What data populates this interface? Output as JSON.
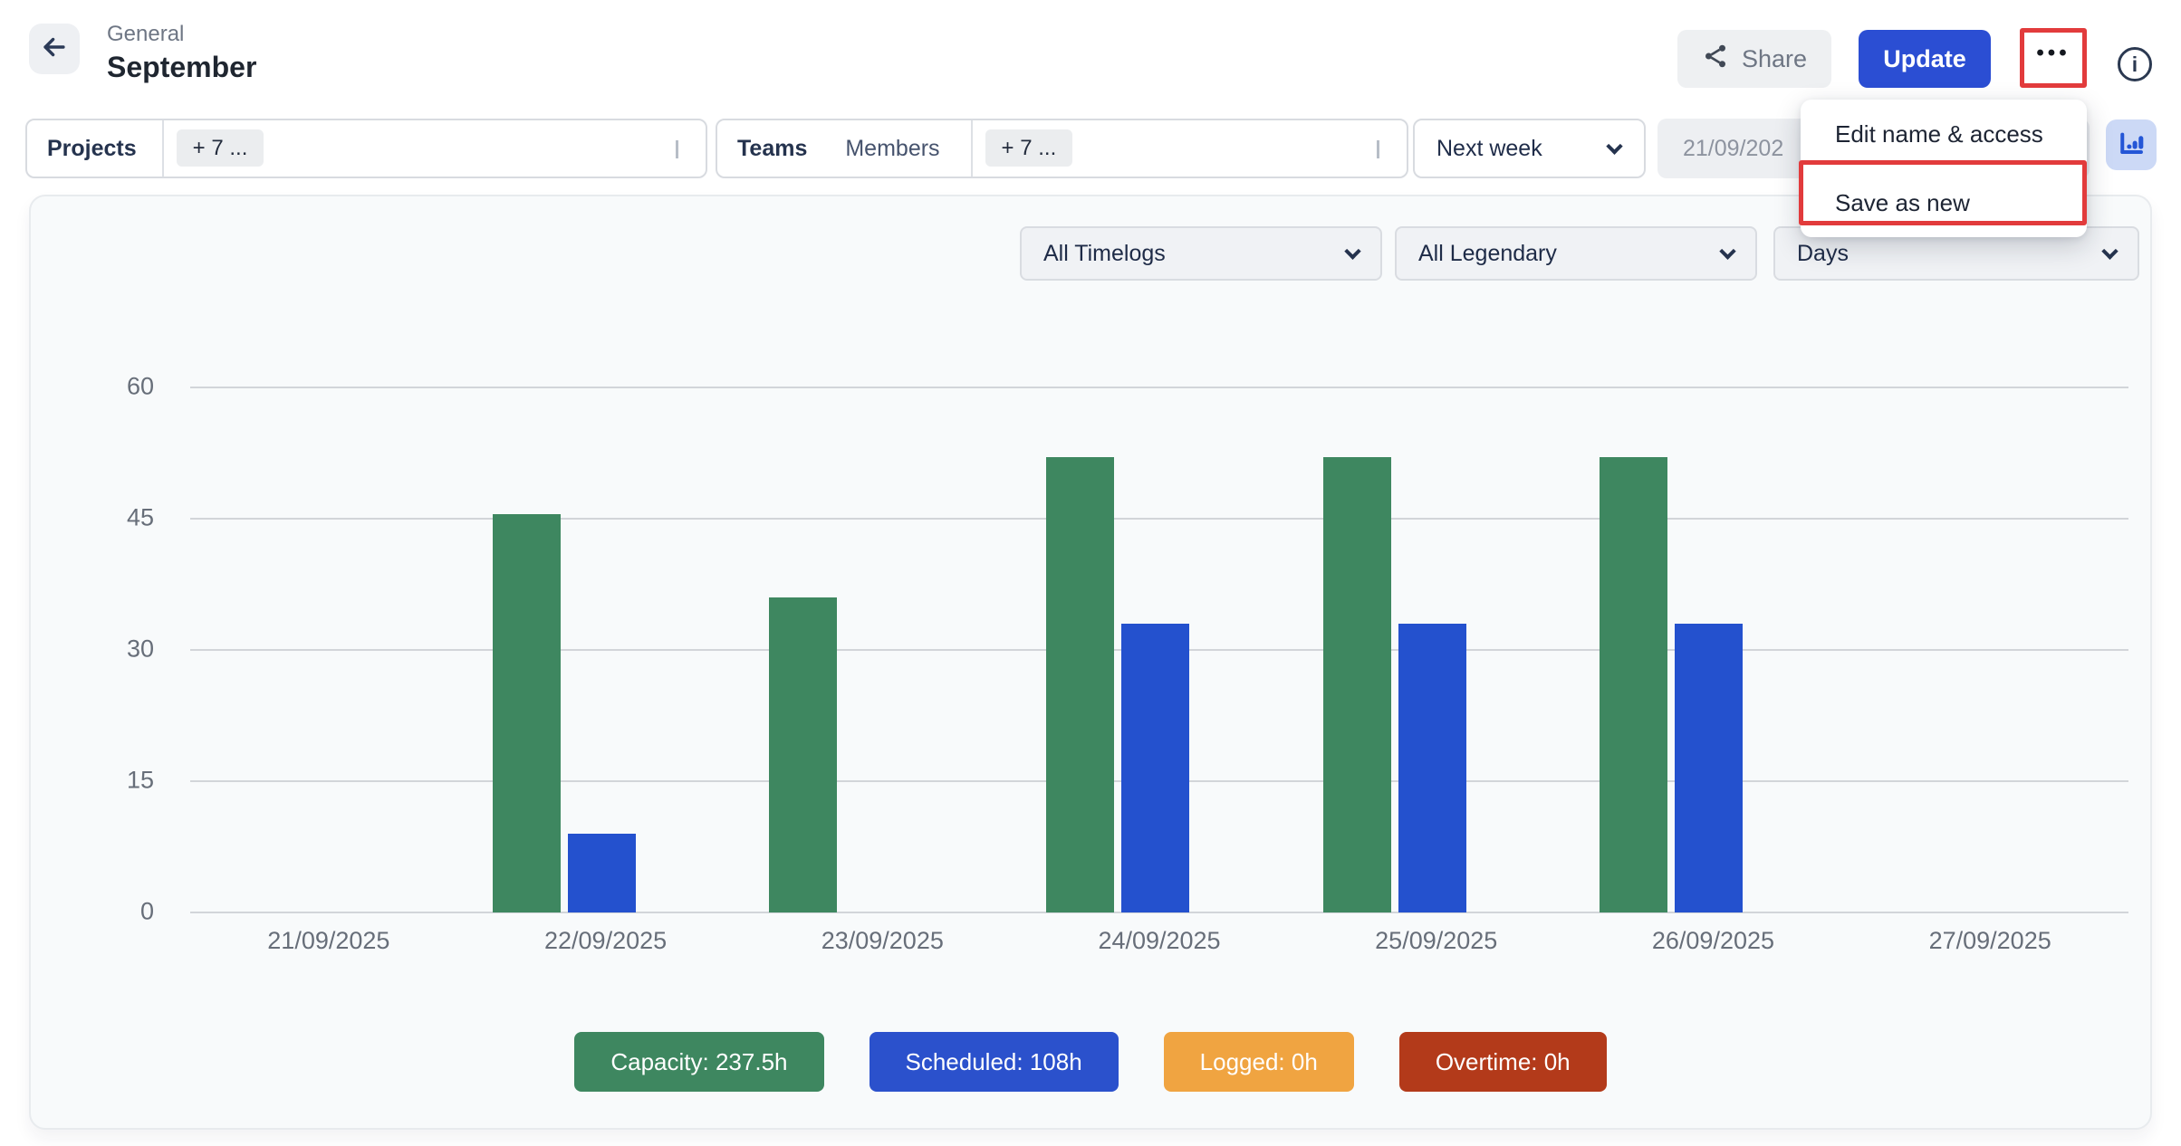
{
  "header": {
    "breadcrumb": "General",
    "title": "September",
    "share_label": "Share",
    "update_label": "Update",
    "more_label": "•••",
    "info_label": "i"
  },
  "menu": {
    "items": [
      {
        "label": "Edit name & access"
      },
      {
        "label": "Save as new"
      }
    ]
  },
  "annotations": {
    "color": "#e23b3c",
    "targets": [
      "more-button",
      "menu-item-save-as-new"
    ]
  },
  "filters": {
    "projects_label": "Projects",
    "projects_chip": "+ 7 ...",
    "teams_label": "Teams",
    "members_label": "Members",
    "teams_chip": "+ 7 ...",
    "range_value": "Next week",
    "date_value": "21/09/202"
  },
  "chart_controls": {
    "timelogs": "All Timelogs",
    "legendary": "All Legendary",
    "granularity": "Days"
  },
  "chart_data": {
    "type": "bar",
    "title": "",
    "categories": [
      "21/09/2025",
      "22/09/2025",
      "23/09/2025",
      "24/09/2025",
      "25/09/2025",
      "26/09/2025",
      "27/09/2025"
    ],
    "series": [
      {
        "name": "Capacity",
        "color": "#3e8760",
        "values": [
          0,
          45.5,
          36,
          52,
          52,
          52,
          0
        ]
      },
      {
        "name": "Scheduled",
        "color": "#2451ce",
        "values": [
          0,
          9,
          0,
          33,
          33,
          33,
          0
        ]
      },
      {
        "name": "Logged",
        "color": "#f0a441",
        "values": [
          0,
          0,
          0,
          0,
          0,
          0,
          0
        ]
      },
      {
        "name": "Overtime",
        "color": "#b33a1a",
        "values": [
          0,
          0,
          0,
          0,
          0,
          0,
          0
        ]
      }
    ],
    "y_ticks": [
      60,
      45,
      30,
      15,
      0
    ],
    "ylim": [
      0,
      60
    ],
    "xlabel": "",
    "ylabel": "",
    "grid": true,
    "legend_position": "bottom"
  },
  "legend": {
    "items": [
      {
        "label": "Capacity",
        "value": "237.5h",
        "text": "Capacity: 237.5h",
        "color": "#3e8760"
      },
      {
        "label": "Scheduled",
        "value": "108h",
        "text": "Scheduled: 108h",
        "color": "#2b51cc"
      },
      {
        "label": "Logged",
        "value": "0h",
        "text": "Logged: 0h",
        "color": "#f0a441"
      },
      {
        "label": "Overtime",
        "value": "0h",
        "text": "Overtime: 0h",
        "color": "#b33a1a"
      }
    ]
  },
  "icons": [
    "arrow-left-icon",
    "share-icon",
    "ellipsis-icon",
    "info-icon",
    "chevron-down-icon",
    "bar-chart-icon"
  ]
}
